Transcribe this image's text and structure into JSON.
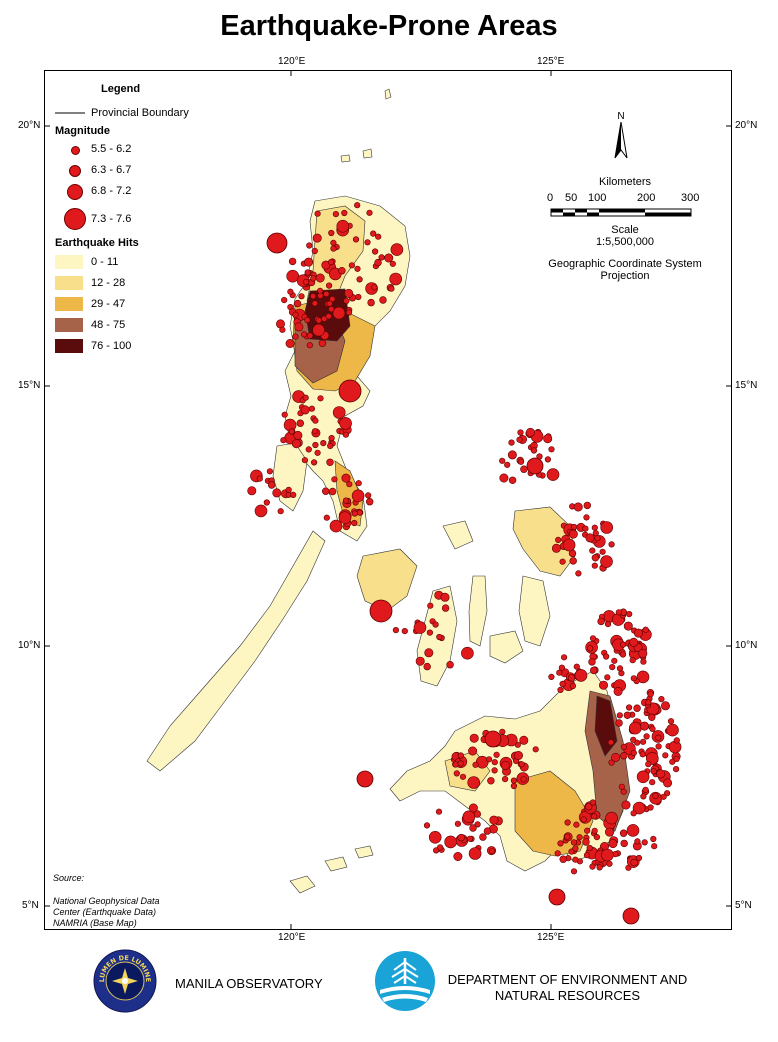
{
  "title": "Earthquake-Prone Areas",
  "graticule": {
    "lon_top": [
      "120°E",
      "125°E"
    ],
    "lon_bottom": [
      "120°E",
      "125°E"
    ],
    "lat_left": [
      "20°N",
      "15°N",
      "10°N",
      "5°N"
    ],
    "lat_right": [
      "20°N",
      "15°N",
      "10°N",
      "5°N"
    ]
  },
  "legend": {
    "heading": "Legend",
    "boundary_label": "Provincial Boundary",
    "magnitude_heading": "Magnitude",
    "magnitude_classes": [
      "5.5 - 6.2",
      "6.3 - 6.7",
      "6.8 - 7.2",
      "7.3 - 7.6"
    ],
    "hits_heading": "Earthquake Hits",
    "hits_classes": [
      {
        "label": "0 - 11",
        "color": "#fdf6c3"
      },
      {
        "label": "12 - 28",
        "color": "#f7df8c"
      },
      {
        "label": "29 - 47",
        "color": "#eeb849"
      },
      {
        "label": "48 - 75",
        "color": "#a7624a"
      },
      {
        "label": "76 - 100",
        "color": "#5a0b0b"
      }
    ],
    "dot_color": "#e0191c"
  },
  "north_arrow": {
    "label": "N"
  },
  "scale": {
    "units_label": "Kilometers",
    "ticks": [
      "0",
      "50",
      "100",
      "200",
      "300"
    ],
    "scale_label": "Scale",
    "ratio": "1:5,500,000",
    "projection_line1": "Geographic Coordinate System",
    "projection_line2": "Projection"
  },
  "source": {
    "heading": "Source:",
    "line1": "National Geophysical Data",
    "line2": "Center (Earthquake Data)",
    "line3": "NAMRIA (Base Map)"
  },
  "footer": {
    "org1": "MANILA OBSERVATORY",
    "org2_line1": "DEPARTMENT OF ENVIRONMENT AND",
    "org2_line2": "NATURAL RESOURCES",
    "seal_text": "LUMEN DE LUMINE"
  }
}
